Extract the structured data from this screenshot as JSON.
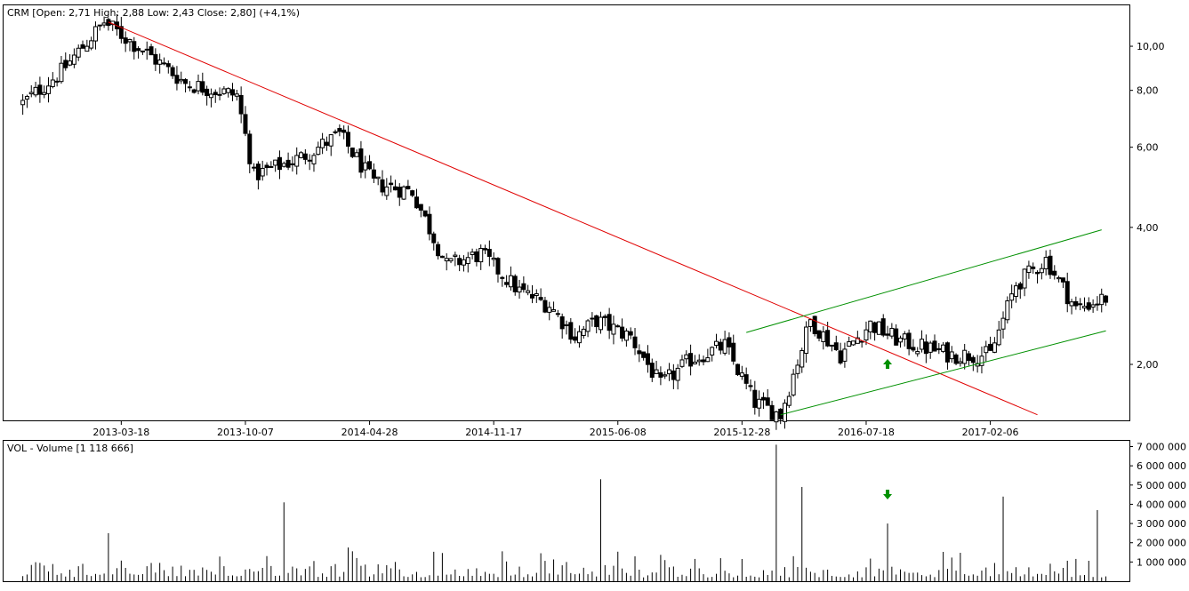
{
  "price_panel": {
    "title": "CRM [Open: 2,71  High: 2,88  Low: 2,43  Close: 2,80] (+4,1%)",
    "y_ticks": [
      "10,00",
      "8,00",
      "6,00",
      "4,00",
      "2,00"
    ],
    "x_ticks": [
      "2013-03-18",
      "2013-10-07",
      "2014-04-28",
      "2014-11-17",
      "2015-06-08",
      "2015-12-28",
      "2016-07-18",
      "2017-02-06"
    ]
  },
  "volume_panel": {
    "title": "VOL - Volume [1 118 666]",
    "y_ticks": [
      "7 000 000",
      "6 000 000",
      "5 000 000",
      "4 000 000",
      "3 000 000",
      "2 000 000",
      "1 000 000"
    ]
  },
  "colors": {
    "downtrend_line": "#e00000",
    "channel_lines": "#009000",
    "arrows": "#009000",
    "candles": "#000000",
    "axis": "#000000"
  },
  "chart_data": [
    {
      "type": "candlestick",
      "title": "CRM [Open: 2,71  High: 2,88  Low: 2,43  Close: 2,80] (+4,1%)",
      "scale": "log",
      "ylim": [
        1.5,
        12.3
      ],
      "y_ticks": [
        10,
        8,
        6,
        4,
        2
      ],
      "x_tick_labels": [
        "2013-03-18",
        "2013-10-07",
        "2014-04-28",
        "2014-11-17",
        "2015-06-08",
        "2015-12-28",
        "2016-07-18",
        "2017-02-06"
      ],
      "approx_close_path": [
        {
          "date": "2012-10-08",
          "close": 7.5
        },
        {
          "date": "2012-12-10",
          "close": 8.8
        },
        {
          "date": "2013-02-18",
          "close": 11.3
        },
        {
          "date": "2013-05-06",
          "close": 9.5
        },
        {
          "date": "2013-07-01",
          "close": 8.3
        },
        {
          "date": "2013-09-23",
          "close": 7.8
        },
        {
          "date": "2013-10-21",
          "close": 5.2
        },
        {
          "date": "2014-01-06",
          "close": 5.7
        },
        {
          "date": "2014-03-10",
          "close": 6.4
        },
        {
          "date": "2014-05-05",
          "close": 5.0
        },
        {
          "date": "2014-07-07",
          "close": 4.8
        },
        {
          "date": "2014-09-01",
          "close": 3.3
        },
        {
          "date": "2014-10-27",
          "close": 3.5
        },
        {
          "date": "2014-12-29",
          "close": 2.9
        },
        {
          "date": "2015-02-16",
          "close": 2.7
        },
        {
          "date": "2015-03-30",
          "close": 2.3
        },
        {
          "date": "2015-05-04",
          "close": 2.5
        },
        {
          "date": "2015-06-29",
          "close": 2.3
        },
        {
          "date": "2015-08-17",
          "close": 1.8
        },
        {
          "date": "2015-10-05",
          "close": 2.05
        },
        {
          "date": "2015-11-30",
          "close": 2.2
        },
        {
          "date": "2016-01-18",
          "close": 1.65
        },
        {
          "date": "2016-02-29",
          "close": 1.55
        },
        {
          "date": "2016-04-18",
          "close": 2.5
        },
        {
          "date": "2016-06-06",
          "close": 2.1
        },
        {
          "date": "2016-07-25",
          "close": 2.45
        },
        {
          "date": "2016-09-12",
          "close": 2.25
        },
        {
          "date": "2016-12-05",
          "close": 2.1
        },
        {
          "date": "2017-02-06",
          "close": 2.1
        },
        {
          "date": "2017-03-20",
          "close": 3.0
        },
        {
          "date": "2017-05-08",
          "close": 3.4
        },
        {
          "date": "2017-06-26",
          "close": 2.65
        },
        {
          "date": "2017-08-14",
          "close": 2.8
        }
      ],
      "trendlines": [
        {
          "from": {
            "date": "2013-02-25",
            "value": 11.3
          },
          "to": {
            "date": "2017-04-24",
            "value": 1.55
          }
        },
        {
          "from": {
            "date": "2016-02-29",
            "value": 1.55
          },
          "to": {
            "date": "2017-08-14",
            "value": 2.37
          }
        },
        {
          "from": {
            "date": "2016-01-04",
            "value": 2.35
          },
          "to": {
            "date": "2017-08-07",
            "value": 3.95
          }
        }
      ],
      "markers": [
        {
          "shape": "up-arrow",
          "date": "2016-08-22",
          "value": 2.0
        }
      ]
    },
    {
      "type": "bar",
      "title": "VOL - Volume [1 118 666]",
      "last_value": 1118666,
      "ylim": [
        0,
        7300000
      ],
      "y_ticks": [
        7000000,
        6000000,
        5000000,
        4000000,
        3000000,
        2000000,
        1000000
      ],
      "notable_peaks": [
        {
          "date": "2013-02-25",
          "volume": 2500000
        },
        {
          "date": "2013-12-09",
          "volume": 4100000
        },
        {
          "date": "2015-05-11",
          "volume": 5300000
        },
        {
          "date": "2016-02-22",
          "volume": 7100000
        },
        {
          "date": "2016-04-04",
          "volume": 4900000
        },
        {
          "date": "2016-08-22",
          "volume": 3000000
        },
        {
          "date": "2017-02-27",
          "volume": 4400000
        },
        {
          "date": "2017-07-31",
          "volume": 3700000
        }
      ],
      "markers": [
        {
          "shape": "down-arrow",
          "date": "2016-08-22"
        }
      ]
    }
  ]
}
